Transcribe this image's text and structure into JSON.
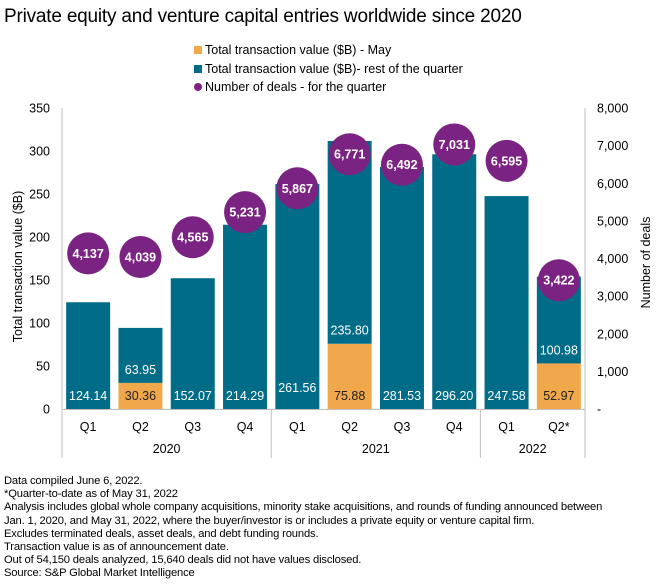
{
  "chart_data": {
    "type": "bar",
    "title": "Private equity and venture capital entries worldwide since 2020",
    "categories": [
      "Q1",
      "Q2",
      "Q3",
      "Q4",
      "Q1",
      "Q2",
      "Q3",
      "Q4",
      "Q1",
      "Q2*"
    ],
    "year_groups": [
      {
        "label": "2020",
        "count": 4
      },
      {
        "label": "2021",
        "count": 4
      },
      {
        "label": "2022",
        "count": 2
      }
    ],
    "series": [
      {
        "name": "Total transaction value ($B) - May",
        "type": "stacked-bar",
        "color": "#F0A84A",
        "values": [
          null,
          30.36,
          null,
          null,
          null,
          75.88,
          null,
          null,
          null,
          52.97
        ]
      },
      {
        "name": "Total transaction value ($B)- rest of the quarter",
        "type": "stacked-bar",
        "color": "#006C87",
        "values": [
          124.14,
          63.95,
          152.07,
          214.29,
          261.56,
          235.8,
          281.53,
          296.2,
          247.58,
          100.98
        ]
      },
      {
        "name": "Number of deals - for the quarter",
        "type": "bubble-marker",
        "axis": "right",
        "color": "#7B2382",
        "values": [
          4137,
          4039,
          4565,
          5231,
          5867,
          6771,
          6492,
          7031,
          6595,
          3422
        ]
      }
    ],
    "bar_labels": {
      "may": [
        "",
        "30.36",
        "",
        "",
        "",
        "75.88",
        "",
        "",
        "",
        "52.97"
      ],
      "rest": [
        "124.14",
        "63.95",
        "152.07",
        "214.29",
        "261.56",
        "235.80",
        "281.53",
        "296.20",
        "247.58",
        "100.98"
      ]
    },
    "deal_labels": [
      "4,137",
      "4,039",
      "4,565",
      "5,231",
      "5,867",
      "6,771",
      "6,492",
      "7,031",
      "6,595",
      "3,422"
    ],
    "ylabel": "Total transaction value ($B)",
    "y2label": "Number of deals",
    "ylim": [
      0,
      350
    ],
    "y2lim": [
      0,
      8000
    ],
    "yticks": [
      0,
      50,
      100,
      150,
      200,
      250,
      300,
      350
    ],
    "yticklabels": [
      "0",
      "50",
      "100",
      "150",
      "200",
      "250",
      "300",
      "350"
    ],
    "y2ticks": [
      0,
      1000,
      2000,
      3000,
      4000,
      5000,
      6000,
      7000,
      8000
    ],
    "y2ticklabels": [
      "-",
      "1,000",
      "2,000",
      "3,000",
      "4,000",
      "5,000",
      "6,000",
      "7,000",
      "8,000"
    ],
    "grid": false,
    "legend_position": "top-center"
  },
  "legend": [
    {
      "label": "Total transaction value ($B) - May",
      "color": "#F0A84A",
      "shape": "square"
    },
    {
      "label": "Total transaction value ($B)- rest of the quarter",
      "color": "#006C87",
      "shape": "square"
    },
    {
      "label": "Number of deals - for the quarter",
      "color": "#7B2382",
      "shape": "circle"
    }
  ],
  "notes": [
    "Data compiled June 6, 2022.",
    "*Quarter-to-date as of May 31, 2022",
    "Analysis includes global whole company acquisitions, minority stake acquisitions, and rounds of funding announced between",
    "Jan. 1, 2020, and May 31, 2022, where the buyer/investor is or includes a private equity or venture capital firm.",
    "Excludes terminated deals, asset deals, and debt funding rounds.",
    "Transaction value is as of announcement date.",
    "Out of 54,150 deals analyzed, 15,640 deals did not have values disclosed.",
    "Source: S&P Global Market Intelligence"
  ]
}
